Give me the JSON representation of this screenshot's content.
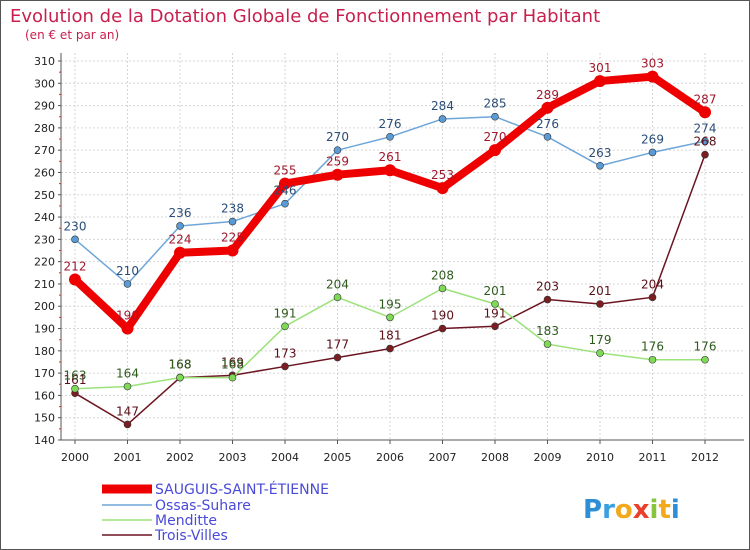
{
  "chart_data": {
    "type": "line",
    "title": "Evolution de la Dotation Globale de Fonctionnement par Habitant",
    "subtitle": "(en € et par an)",
    "xlabel": "",
    "ylabel": "",
    "ylim": [
      140,
      310
    ],
    "yticks": [
      140,
      150,
      160,
      170,
      180,
      190,
      200,
      210,
      220,
      230,
      240,
      250,
      260,
      270,
      280,
      290,
      300,
      310
    ],
    "grid": true,
    "legend_position": "bottom-left",
    "categories": [
      "2000",
      "2001",
      "2002",
      "2003",
      "2004",
      "2005",
      "2006",
      "2007",
      "2008",
      "2009",
      "2010",
      "2011",
      "2012"
    ],
    "series": [
      {
        "name": "Trois-Villes",
        "color": "#6b1520",
        "marker_color": "#7a1e22",
        "values": [
          161,
          147,
          168,
          169,
          173,
          177,
          181,
          190,
          191,
          203,
          201,
          204,
          268
        ],
        "labels": [
          "161",
          "147",
          "168",
          "169",
          "173",
          "177",
          "181",
          "190",
          "191",
          "203",
          "201",
          "204",
          "268"
        ]
      },
      {
        "name": "Menditte",
        "color": "#9be27a",
        "marker_color": "#7ed957",
        "values": [
          163,
          164,
          168,
          168,
          191,
          204,
          195,
          208,
          201,
          183,
          179,
          176,
          176
        ],
        "labels": [
          "163",
          "164",
          "168",
          "168",
          "191",
          "204",
          "195",
          "208",
          "201",
          "183",
          "179",
          "176",
          "176"
        ]
      },
      {
        "name": "Ossas-Suhare",
        "color": "#6fa6d8",
        "marker_color": "#5b9bd5",
        "values": [
          230,
          210,
          236,
          238,
          246,
          270,
          276,
          284,
          285,
          276,
          263,
          269,
          274
        ],
        "labels": [
          "230",
          "210",
          "236",
          "238",
          "246",
          "270",
          "276",
          "284",
          "285",
          "276",
          "263",
          "269",
          "274"
        ]
      },
      {
        "name": "SAUGUIS-SAINT-ÉTIENNE",
        "color": "#ee0000",
        "marker_color": "#ee0000",
        "values": [
          212,
          190,
          224,
          225,
          255,
          259,
          261,
          253,
          270,
          289,
          301,
          303,
          287
        ],
        "labels": [
          "212",
          "190",
          "224",
          "225",
          "255",
          "259",
          "261",
          "253",
          "270",
          "289",
          "301",
          "303",
          "287"
        ]
      }
    ],
    "legend_order": [
      "SAUGUIS-SAINT-ÉTIENNE",
      "Ossas-Suhare",
      "Menditte",
      "Trois-Villes"
    ]
  },
  "logo": {
    "letters": [
      "P",
      "r",
      "o",
      "x",
      "i",
      "t",
      "i"
    ],
    "colors": [
      "#2e8fd6",
      "#3aa0e0",
      "#f2a91b",
      "#e8402a",
      "#8ac43f",
      "#f2a91b",
      "#2e8fd6"
    ]
  },
  "colors": {
    "title": "#c8204e",
    "grid": "#d6d6d6",
    "axis": "#555555"
  }
}
